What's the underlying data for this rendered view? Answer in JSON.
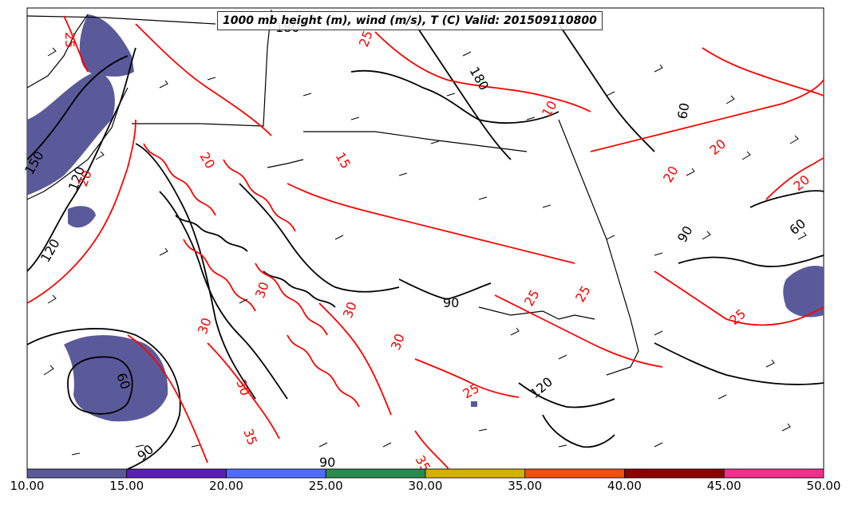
{
  "title": "1000 mb height (m), wind (m/s), T (C) Valid: 201509110800",
  "colorbar": {
    "tick_labels": [
      "10.00",
      "15.00",
      "20.00",
      "25.00",
      "30.00",
      "35.00",
      "40.00",
      "45.00",
      "50.00"
    ],
    "colors": [
      "#5a5a9a",
      "#5a1fb3",
      "#4f6bff",
      "#2a8a50",
      "#d4b000",
      "#f05010",
      "#8b0000",
      "#f0308a"
    ]
  },
  "contour_labels": {
    "height": [
      "120",
      "150",
      "180",
      "180",
      "120",
      "90",
      "60",
      "90",
      "60",
      "120",
      "60",
      "90",
      "90"
    ],
    "temperature": [
      "25",
      "20",
      "15",
      "10",
      "20",
      "20",
      "20",
      "25",
      "25",
      "25",
      "30",
      "30",
      "30",
      "25",
      "20",
      "30",
      "25",
      "30",
      "35",
      "35"
    ]
  },
  "colors": {
    "height_contour": "#000000",
    "temperature_contour": "#ff0000",
    "wind_shading": "#5a5a9a"
  }
}
